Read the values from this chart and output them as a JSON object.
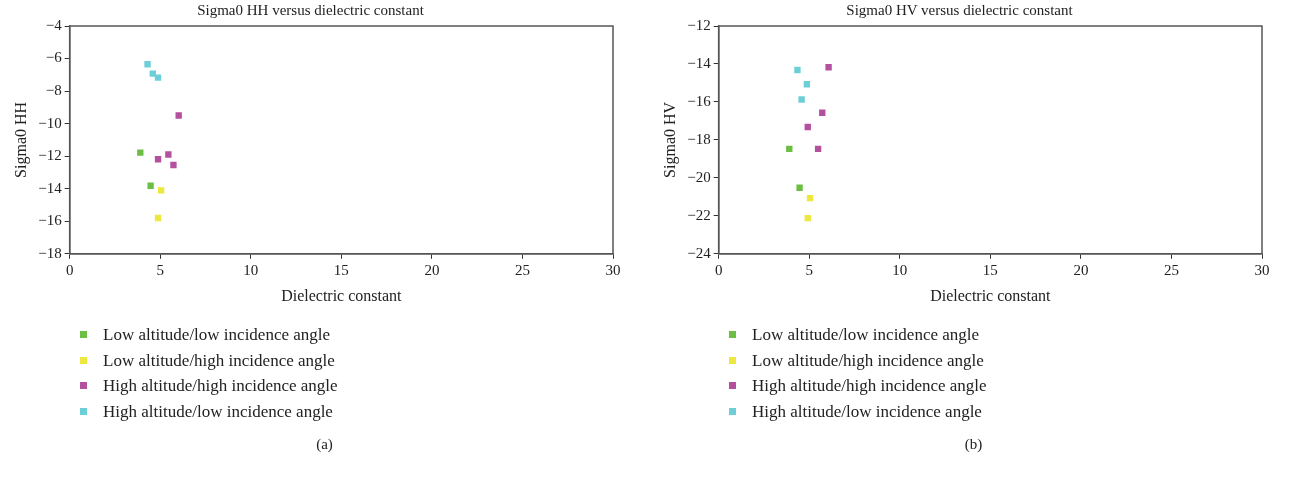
{
  "chart_data": [
    {
      "type": "scatter",
      "title": "Sigma0 HH versus dielectric constant",
      "xlabel": "Dielectric constant",
      "ylabel": "Sigma0 HH",
      "xlim": [
        0,
        30
      ],
      "xticks": [
        0,
        5,
        10,
        15,
        20,
        25,
        30
      ],
      "ylim": [
        -18,
        -4
      ],
      "yticks": [
        -18,
        -16,
        -14,
        -12,
        -10,
        -8,
        -6,
        -4
      ],
      "grid": false,
      "legend": "bottom",
      "marker": "square",
      "annotations": [
        "(a)"
      ],
      "series": [
        {
          "name": "Low altitude/low incidence angle",
          "color": "#6dbe45",
          "x": [
            3.9,
            4.47
          ],
          "values": [
            -11.78,
            -13.82
          ]
        },
        {
          "name": "Low altitude/high incidence angle",
          "color": "#ede83f",
          "x": [
            5.05,
            4.88
          ],
          "values": [
            -14.1,
            -15.8
          ]
        },
        {
          "name": "High altitude/high incidence angle",
          "color": "#b4519f",
          "x": [
            6.02,
            5.45,
            4.88,
            5.73
          ],
          "values": [
            -9.5,
            -11.9,
            -12.19,
            -12.54
          ]
        },
        {
          "name": "High altitude/low incidence angle",
          "color": "#6ccfd8",
          "x": [
            4.3,
            4.59,
            4.88
          ],
          "values": [
            -6.35,
            -6.93,
            -7.17
          ]
        }
      ]
    },
    {
      "type": "scatter",
      "title": "Sigma0 HV versus dielectric constant",
      "xlabel": "Dielectric constant",
      "ylabel": "Sigma0 HV",
      "xlim": [
        0,
        30
      ],
      "xticks": [
        0,
        5,
        10,
        15,
        20,
        25,
        30
      ],
      "ylim": [
        -24,
        -12
      ],
      "yticks": [
        -24,
        -22,
        -20,
        -18,
        -16,
        -14,
        -12
      ],
      "grid": false,
      "legend": "bottom",
      "marker": "square",
      "annotations": [
        "(b)"
      ],
      "series": [
        {
          "name": "Low altitude/low incidence angle",
          "color": "#6dbe45",
          "x": [
            3.9,
            4.47
          ],
          "values": [
            -18.47,
            -20.52
          ]
        },
        {
          "name": "Low altitude/high incidence angle",
          "color": "#ede83f",
          "x": [
            5.04,
            4.92
          ],
          "values": [
            -21.07,
            -22.12
          ]
        },
        {
          "name": "High altitude/high incidence angle",
          "color": "#b4519f",
          "x": [
            6.07,
            5.72,
            4.92,
            5.49
          ],
          "values": [
            -14.17,
            -16.57,
            -17.32,
            -18.47
          ]
        },
        {
          "name": "High altitude/low incidence angle",
          "color": "#6ccfd8",
          "x": [
            4.35,
            4.87,
            4.58
          ],
          "values": [
            -14.32,
            -15.07,
            -15.87
          ]
        }
      ]
    }
  ]
}
